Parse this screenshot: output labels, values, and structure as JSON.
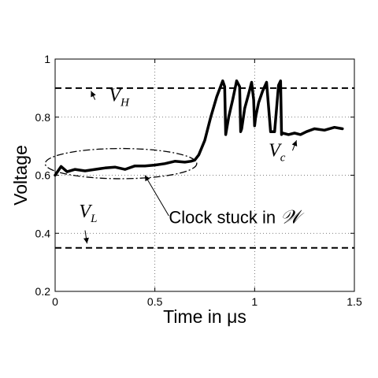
{
  "chart_data": {
    "type": "line",
    "xlabel": "Time in μs",
    "ylabel": "Voltage",
    "xlim": [
      0,
      1.5
    ],
    "ylim": [
      0.2,
      1.0
    ],
    "xticks": [
      0,
      0.5,
      1,
      1.5
    ],
    "xtick_labels": [
      "0",
      "0.5",
      "1",
      "1.5"
    ],
    "yticks": [
      0.2,
      0.4,
      0.6,
      0.8,
      1.0
    ],
    "ytick_labels": [
      "0.2",
      "0.4",
      "0.6",
      "0.8",
      "1"
    ],
    "grid": true,
    "grid_style": "dotted",
    "series": [
      {
        "name": "V_c",
        "style": "solid-thick",
        "color": "#000000",
        "x": [
          0.0,
          0.03,
          0.06,
          0.1,
          0.15,
          0.2,
          0.25,
          0.3,
          0.35,
          0.4,
          0.45,
          0.5,
          0.55,
          0.6,
          0.65,
          0.68,
          0.7,
          0.72,
          0.75,
          0.78,
          0.81,
          0.84,
          0.85,
          0.855,
          0.87,
          0.89,
          0.91,
          0.925,
          0.93,
          0.935,
          0.95,
          0.97,
          0.985,
          0.995,
          1.0,
          1.005,
          1.02,
          1.04,
          1.06,
          1.08,
          1.1,
          1.12,
          1.13,
          1.135,
          1.14,
          1.17,
          1.2,
          1.23,
          1.26,
          1.3,
          1.35,
          1.4,
          1.44
        ],
        "y": [
          0.6,
          0.63,
          0.612,
          0.62,
          0.615,
          0.62,
          0.625,
          0.628,
          0.62,
          0.632,
          0.632,
          0.635,
          0.64,
          0.648,
          0.645,
          0.648,
          0.652,
          0.67,
          0.72,
          0.8,
          0.87,
          0.925,
          0.905,
          0.74,
          0.8,
          0.86,
          0.925,
          0.905,
          0.75,
          0.76,
          0.83,
          0.88,
          0.92,
          0.86,
          0.77,
          0.8,
          0.85,
          0.89,
          0.92,
          0.75,
          0.75,
          0.91,
          0.925,
          0.74,
          0.745,
          0.74,
          0.745,
          0.74,
          0.75,
          0.76,
          0.755,
          0.765,
          0.76
        ]
      },
      {
        "name": "V_H",
        "style": "dashed",
        "color": "#000000",
        "x": [
          0,
          1.5
        ],
        "y": [
          0.9,
          0.9
        ]
      },
      {
        "name": "V_L",
        "style": "dashed",
        "color": "#000000",
        "x": [
          0,
          1.5
        ],
        "y": [
          0.35,
          0.35
        ]
      }
    ],
    "annotations": {
      "vh": {
        "main": "V",
        "sub": "H",
        "x": 0.27,
        "y": 0.855,
        "arrow_from": [
          0.2,
          0.86
        ],
        "arrow_to": [
          0.18,
          0.89
        ]
      },
      "vl": {
        "main": "V",
        "sub": "L",
        "x": 0.12,
        "y": 0.455,
        "arrow_from": [
          0.15,
          0.41
        ],
        "arrow_to": [
          0.16,
          0.365
        ]
      },
      "vc": {
        "main": "V",
        "sub": "c",
        "x": 1.07,
        "y": 0.665,
        "arrow_from": [
          1.19,
          0.685
        ],
        "arrow_to": [
          1.21,
          0.72
        ]
      },
      "clock": {
        "text": "Clock stuck in ",
        "math": "𝒲",
        "x": 0.57,
        "y": 0.435,
        "arrow_from": [
          0.57,
          0.46
        ],
        "arrow_to": [
          0.45,
          0.6
        ]
      },
      "ellipse": {
        "cx": 0.33,
        "cy": 0.64,
        "rx": 0.38,
        "ry": 0.052
      }
    }
  }
}
